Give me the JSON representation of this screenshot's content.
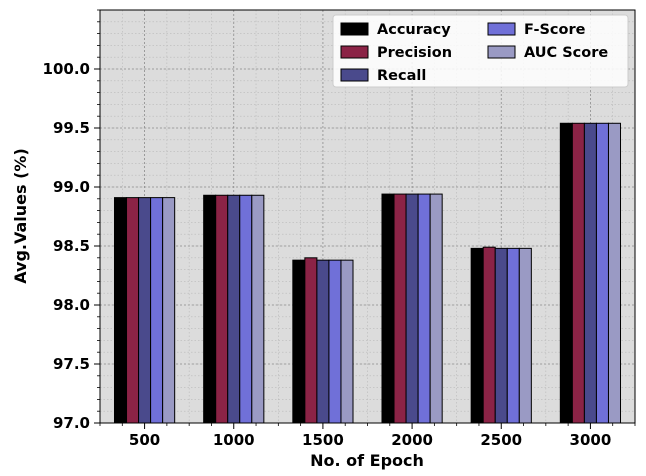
{
  "chart_data": {
    "type": "bar",
    "xlabel": "No. of Epoch",
    "ylabel": "Avg.Values (%)",
    "categories": [
      "500",
      "1000",
      "1500",
      "2000",
      "2500",
      "3000"
    ],
    "ylim": [
      97.0,
      100.5
    ],
    "yticks": [
      "97.0",
      "97.5",
      "98.0",
      "98.5",
      "99.0",
      "99.5",
      "100.0"
    ],
    "grid": true,
    "legend_position": "top-right",
    "series": [
      {
        "name": "Accuracy",
        "color": "#000000",
        "values": [
          98.91,
          98.93,
          98.38,
          98.94,
          98.48,
          99.54
        ]
      },
      {
        "name": "Precision",
        "color": "#8b2346",
        "values": [
          98.91,
          98.93,
          98.4,
          98.94,
          98.49,
          99.54
        ]
      },
      {
        "name": "Recall",
        "color": "#4a4a8c",
        "values": [
          98.91,
          98.93,
          98.38,
          98.94,
          98.48,
          99.54
        ]
      },
      {
        "name": "F-Score",
        "color": "#7070d8",
        "values": [
          98.91,
          98.93,
          98.38,
          98.94,
          98.48,
          99.54
        ]
      },
      {
        "name": "AUC Score",
        "color": "#9a9ac4",
        "values": [
          98.91,
          98.93,
          98.38,
          98.94,
          98.48,
          99.54
        ]
      }
    ],
    "plot_background": "#dcdcdc"
  }
}
